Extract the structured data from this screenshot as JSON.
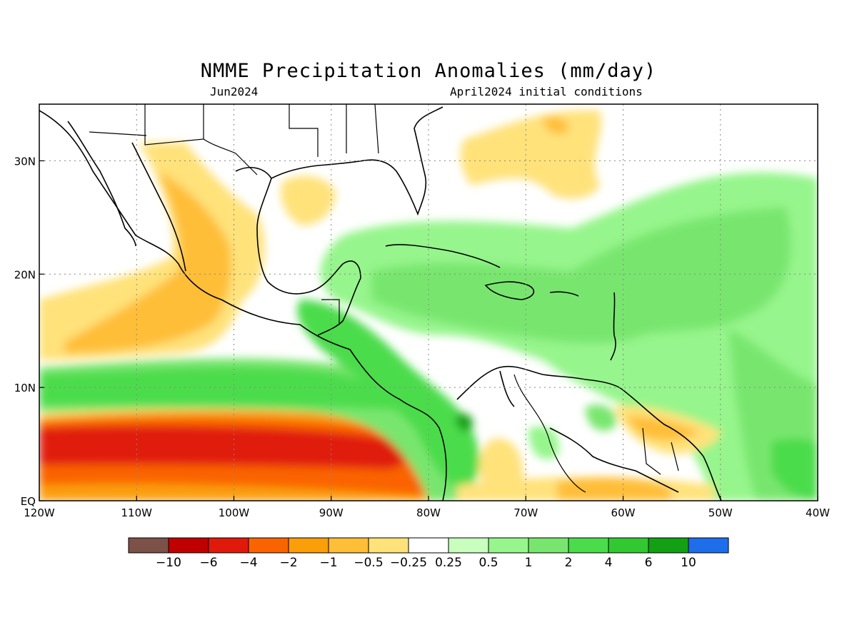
{
  "title": "NMME Precipitation Anomalies (mm/day)",
  "subtitle_left": "Jun2024",
  "subtitle_right": "April2024 initial conditions",
  "map": {
    "lon_range": [
      -120,
      -40
    ],
    "lat_range": [
      0,
      35
    ],
    "lon_ticks": [
      "120W",
      "110W",
      "100W",
      "90W",
      "80W",
      "70W",
      "60W",
      "50W",
      "40W"
    ],
    "lat_ticks": [
      "EQ",
      "10N",
      "20N",
      "30N"
    ],
    "grid": true
  },
  "colorbar": {
    "colors": [
      "#7b5148",
      "#c00000",
      "#e01a0a",
      "#fa6400",
      "#fa9e0a",
      "#ffbe37",
      "#ffe27a",
      "#ffffff",
      "#c8ffbe",
      "#96f58c",
      "#78e66e",
      "#4bdc4b",
      "#32c832",
      "#14a014",
      "#1e6eeb"
    ],
    "labels": [
      "-10",
      "-6",
      "-4",
      "-2",
      "-1",
      "-0.5",
      "-0.25",
      "0.25",
      "0.5",
      "1",
      "2",
      "4",
      "6",
      "10"
    ]
  }
}
